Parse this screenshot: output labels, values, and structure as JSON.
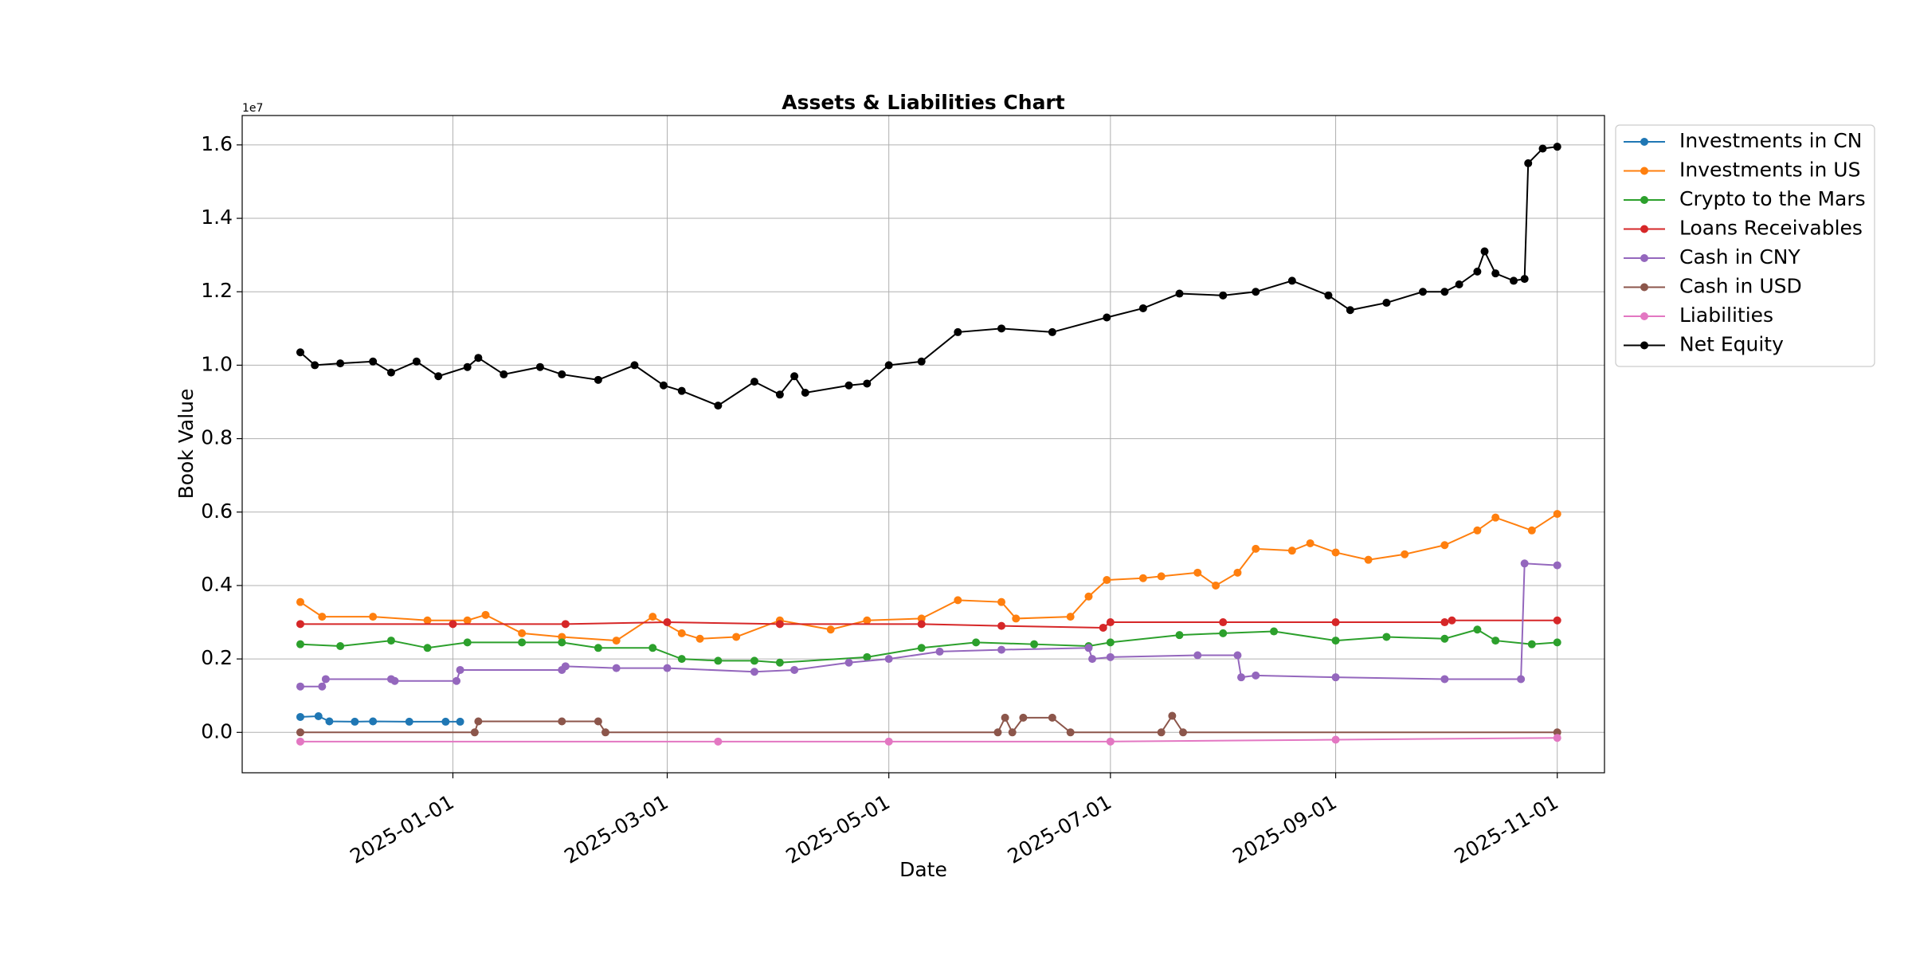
{
  "chart_data": {
    "type": "line",
    "title": "Assets & Liabilities Chart",
    "xlabel": "Date",
    "ylabel": "Book Value",
    "y_offset_label": "1e7",
    "y_scale": 10000000,
    "ylim": [
      -1100000,
      16800000
    ],
    "xlim": [
      "2024-11-04",
      "2025-11-14"
    ],
    "grid": true,
    "legend_position": "outside-right",
    "x_ticks": [
      "2025-01-01",
      "2025-03-01",
      "2025-05-01",
      "2025-07-01",
      "2025-09-01",
      "2025-11-01"
    ],
    "y_ticks": [
      {
        "value": 0,
        "label": "0.0"
      },
      {
        "value": 2000000,
        "label": "0.2"
      },
      {
        "value": 4000000,
        "label": "0.4"
      },
      {
        "value": 6000000,
        "label": "0.6"
      },
      {
        "value": 8000000,
        "label": "0.8"
      },
      {
        "value": 10000000,
        "label": "1.0"
      },
      {
        "value": 12000000,
        "label": "1.2"
      },
      {
        "value": 14000000,
        "label": "1.4"
      },
      {
        "value": 16000000,
        "label": "1.6"
      }
    ],
    "series": [
      {
        "name": "Investments in CN",
        "color": "#1f77b4",
        "points": [
          [
            "2024-11-20",
            420000
          ],
          [
            "2024-11-25",
            440000
          ],
          [
            "2024-11-28",
            300000
          ],
          [
            "2024-12-05",
            290000
          ],
          [
            "2024-12-10",
            300000
          ],
          [
            "2024-12-20",
            290000
          ],
          [
            "2024-12-30",
            290000
          ],
          [
            "2025-01-03",
            290000
          ]
        ]
      },
      {
        "name": "Investments in US",
        "color": "#ff7f0e",
        "points": [
          [
            "2024-11-20",
            3550000
          ],
          [
            "2024-11-26",
            3150000
          ],
          [
            "2024-12-10",
            3150000
          ],
          [
            "2024-12-25",
            3050000
          ],
          [
            "2025-01-05",
            3050000
          ],
          [
            "2025-01-10",
            3200000
          ],
          [
            "2025-01-20",
            2700000
          ],
          [
            "2025-01-31",
            2600000
          ],
          [
            "2025-02-15",
            2500000
          ],
          [
            "2025-02-25",
            3150000
          ],
          [
            "2025-03-05",
            2700000
          ],
          [
            "2025-03-10",
            2550000
          ],
          [
            "2025-03-20",
            2600000
          ],
          [
            "2025-04-01",
            3050000
          ],
          [
            "2025-04-15",
            2800000
          ],
          [
            "2025-04-25",
            3050000
          ],
          [
            "2025-05-10",
            3100000
          ],
          [
            "2025-05-20",
            3600000
          ],
          [
            "2025-06-01",
            3550000
          ],
          [
            "2025-06-05",
            3100000
          ],
          [
            "2025-06-20",
            3150000
          ],
          [
            "2025-06-25",
            3700000
          ],
          [
            "2025-06-30",
            4150000
          ],
          [
            "2025-07-10",
            4200000
          ],
          [
            "2025-07-15",
            4250000
          ],
          [
            "2025-07-25",
            4350000
          ],
          [
            "2025-07-30",
            4000000
          ],
          [
            "2025-08-05",
            4350000
          ],
          [
            "2025-08-10",
            5000000
          ],
          [
            "2025-08-20",
            4950000
          ],
          [
            "2025-08-25",
            5150000
          ],
          [
            "2025-09-01",
            4900000
          ],
          [
            "2025-09-10",
            4700000
          ],
          [
            "2025-09-20",
            4850000
          ],
          [
            "2025-10-01",
            5100000
          ],
          [
            "2025-10-10",
            5500000
          ],
          [
            "2025-10-15",
            5850000
          ],
          [
            "2025-10-25",
            5500000
          ],
          [
            "2025-11-01",
            5950000
          ]
        ]
      },
      {
        "name": "Crypto to the Mars",
        "color": "#2ca02c",
        "points": [
          [
            "2024-11-20",
            2400000
          ],
          [
            "2024-12-01",
            2350000
          ],
          [
            "2024-12-15",
            2500000
          ],
          [
            "2024-12-25",
            2300000
          ],
          [
            "2025-01-05",
            2450000
          ],
          [
            "2025-01-20",
            2450000
          ],
          [
            "2025-01-31",
            2450000
          ],
          [
            "2025-02-10",
            2300000
          ],
          [
            "2025-02-25",
            2300000
          ],
          [
            "2025-03-05",
            2000000
          ],
          [
            "2025-03-15",
            1950000
          ],
          [
            "2025-03-25",
            1950000
          ],
          [
            "2025-04-01",
            1900000
          ],
          [
            "2025-04-25",
            2050000
          ],
          [
            "2025-05-10",
            2300000
          ],
          [
            "2025-05-25",
            2450000
          ],
          [
            "2025-06-10",
            2400000
          ],
          [
            "2025-06-25",
            2350000
          ],
          [
            "2025-07-01",
            2450000
          ],
          [
            "2025-07-20",
            2650000
          ],
          [
            "2025-08-01",
            2700000
          ],
          [
            "2025-08-15",
            2750000
          ],
          [
            "2025-09-01",
            2500000
          ],
          [
            "2025-09-15",
            2600000
          ],
          [
            "2025-10-01",
            2550000
          ],
          [
            "2025-10-10",
            2800000
          ],
          [
            "2025-10-15",
            2500000
          ],
          [
            "2025-10-25",
            2400000
          ],
          [
            "2025-11-01",
            2450000
          ]
        ]
      },
      {
        "name": "Loans Receivables",
        "color": "#d62728",
        "points": [
          [
            "2024-11-20",
            2950000
          ],
          [
            "2025-01-01",
            2950000
          ],
          [
            "2025-02-01",
            2950000
          ],
          [
            "2025-03-01",
            3000000
          ],
          [
            "2025-04-01",
            2950000
          ],
          [
            "2025-05-10",
            2950000
          ],
          [
            "2025-06-01",
            2900000
          ],
          [
            "2025-06-29",
            2850000
          ],
          [
            "2025-07-01",
            3000000
          ],
          [
            "2025-08-01",
            3000000
          ],
          [
            "2025-09-01",
            3000000
          ],
          [
            "2025-10-01",
            3000000
          ],
          [
            "2025-10-03",
            3050000
          ],
          [
            "2025-11-01",
            3050000
          ]
        ]
      },
      {
        "name": "Cash in CNY",
        "color": "#9467bd",
        "points": [
          [
            "2024-11-20",
            1250000
          ],
          [
            "2024-11-26",
            1250000
          ],
          [
            "2024-11-27",
            1450000
          ],
          [
            "2024-12-15",
            1450000
          ],
          [
            "2024-12-16",
            1400000
          ],
          [
            "2025-01-02",
            1400000
          ],
          [
            "2025-01-03",
            1700000
          ],
          [
            "2025-01-31",
            1700000
          ],
          [
            "2025-02-01",
            1800000
          ],
          [
            "2025-02-15",
            1750000
          ],
          [
            "2025-03-01",
            1750000
          ],
          [
            "2025-03-25",
            1650000
          ],
          [
            "2025-04-05",
            1700000
          ],
          [
            "2025-04-20",
            1900000
          ],
          [
            "2025-05-01",
            2000000
          ],
          [
            "2025-05-15",
            2200000
          ],
          [
            "2025-06-01",
            2250000
          ],
          [
            "2025-06-25",
            2300000
          ],
          [
            "2025-06-26",
            2000000
          ],
          [
            "2025-07-01",
            2050000
          ],
          [
            "2025-07-25",
            2100000
          ],
          [
            "2025-08-05",
            2100000
          ],
          [
            "2025-08-06",
            1500000
          ],
          [
            "2025-08-10",
            1550000
          ],
          [
            "2025-09-01",
            1500000
          ],
          [
            "2025-10-01",
            1450000
          ],
          [
            "2025-10-22",
            1450000
          ],
          [
            "2025-10-23",
            4600000
          ],
          [
            "2025-11-01",
            4550000
          ]
        ]
      },
      {
        "name": "Cash in USD",
        "color": "#8c564b",
        "points": [
          [
            "2024-11-20",
            0
          ],
          [
            "2025-01-07",
            0
          ],
          [
            "2025-01-08",
            300000
          ],
          [
            "2025-01-31",
            300000
          ],
          [
            "2025-02-10",
            300000
          ],
          [
            "2025-02-12",
            0
          ],
          [
            "2025-05-31",
            0
          ],
          [
            "2025-06-02",
            400000
          ],
          [
            "2025-06-04",
            0
          ],
          [
            "2025-06-07",
            400000
          ],
          [
            "2025-06-15",
            400000
          ],
          [
            "2025-06-20",
            0
          ],
          [
            "2025-07-15",
            0
          ],
          [
            "2025-07-18",
            450000
          ],
          [
            "2025-07-21",
            0
          ],
          [
            "2025-11-01",
            0
          ]
        ]
      },
      {
        "name": "Liabilities",
        "color": "#e377c2",
        "points": [
          [
            "2024-11-20",
            -250000
          ],
          [
            "2025-03-15",
            -250000
          ],
          [
            "2025-05-01",
            -250000
          ],
          [
            "2025-07-01",
            -250000
          ],
          [
            "2025-09-01",
            -200000
          ],
          [
            "2025-11-01",
            -150000
          ]
        ]
      },
      {
        "name": "Net Equity",
        "color": "#000000",
        "points": [
          [
            "2024-11-20",
            10350000
          ],
          [
            "2024-11-24",
            10000000
          ],
          [
            "2024-12-01",
            10050000
          ],
          [
            "2024-12-10",
            10100000
          ],
          [
            "2024-12-15",
            9800000
          ],
          [
            "2024-12-22",
            10100000
          ],
          [
            "2024-12-28",
            9700000
          ],
          [
            "2025-01-05",
            9950000
          ],
          [
            "2025-01-08",
            10200000
          ],
          [
            "2025-01-15",
            9750000
          ],
          [
            "2025-01-25",
            9950000
          ],
          [
            "2025-01-31",
            9750000
          ],
          [
            "2025-02-10",
            9600000
          ],
          [
            "2025-02-20",
            10000000
          ],
          [
            "2025-02-28",
            9450000
          ],
          [
            "2025-03-05",
            9300000
          ],
          [
            "2025-03-15",
            8900000
          ],
          [
            "2025-03-25",
            9550000
          ],
          [
            "2025-04-01",
            9200000
          ],
          [
            "2025-04-05",
            9700000
          ],
          [
            "2025-04-08",
            9250000
          ],
          [
            "2025-04-20",
            9450000
          ],
          [
            "2025-04-25",
            9500000
          ],
          [
            "2025-05-01",
            10000000
          ],
          [
            "2025-05-10",
            10100000
          ],
          [
            "2025-05-20",
            10900000
          ],
          [
            "2025-06-01",
            11000000
          ],
          [
            "2025-06-15",
            10900000
          ],
          [
            "2025-06-30",
            11300000
          ],
          [
            "2025-07-10",
            11550000
          ],
          [
            "2025-07-20",
            11950000
          ],
          [
            "2025-08-01",
            11900000
          ],
          [
            "2025-08-10",
            12000000
          ],
          [
            "2025-08-20",
            12300000
          ],
          [
            "2025-08-30",
            11900000
          ],
          [
            "2025-09-05",
            11500000
          ],
          [
            "2025-09-15",
            11700000
          ],
          [
            "2025-09-25",
            12000000
          ],
          [
            "2025-10-01",
            12000000
          ],
          [
            "2025-10-05",
            12200000
          ],
          [
            "2025-10-10",
            12550000
          ],
          [
            "2025-10-12",
            13100000
          ],
          [
            "2025-10-15",
            12500000
          ],
          [
            "2025-10-20",
            12300000
          ],
          [
            "2025-10-23",
            12350000
          ],
          [
            "2025-10-24",
            15500000
          ],
          [
            "2025-10-28",
            15900000
          ],
          [
            "2025-11-01",
            15950000
          ]
        ]
      }
    ]
  }
}
